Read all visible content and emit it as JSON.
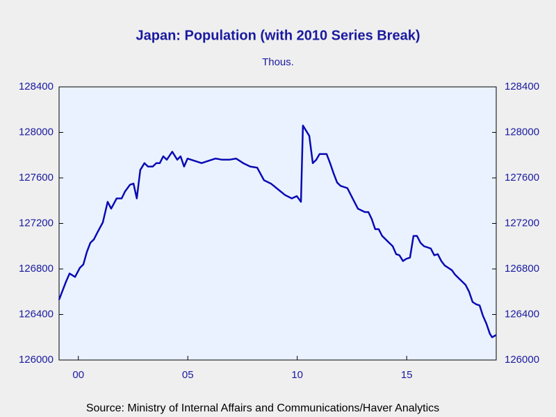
{
  "chart_data": {
    "type": "line",
    "title": "Japan: Population (with 2010 Series Break)",
    "subtitle": "Thous.",
    "source": "Source:  Ministry of Internal Affairs and Communications/Haver Analytics",
    "x": [
      1999.62,
      1999.94,
      2000.1,
      2000.35,
      2000.57,
      2000.73,
      2000.89,
      2001.05,
      2001.21,
      2001.37,
      2001.62,
      2001.84,
      2002.0,
      2002.25,
      2002.48,
      2002.63,
      2002.86,
      2003.02,
      2003.17,
      2003.33,
      2003.52,
      2003.68,
      2003.9,
      2004.06,
      2004.22,
      2004.38,
      2004.54,
      2004.79,
      2005.02,
      2005.17,
      2005.33,
      2005.49,
      2005.81,
      2006.13,
      2006.44,
      2006.76,
      2007.08,
      2007.4,
      2007.71,
      2008.03,
      2008.35,
      2008.67,
      2008.98,
      2009.3,
      2009.62,
      2009.94,
      2010.25,
      2010.48,
      2010.67,
      2010.76,
      2011.05,
      2011.21,
      2011.37,
      2011.52,
      2011.84,
      2012.0,
      2012.16,
      2012.32,
      2012.48,
      2012.79,
      2012.95,
      2013.11,
      2013.27,
      2013.59,
      2013.75,
      2013.9,
      2014.06,
      2014.22,
      2014.38,
      2014.54,
      2014.7,
      2014.86,
      2015.02,
      2015.17,
      2015.33,
      2015.49,
      2015.65,
      2015.81,
      2015.97,
      2016.13,
      2016.29,
      2016.6,
      2016.76,
      2016.92,
      2017.08,
      2017.24,
      2017.56,
      2017.71,
      2017.87,
      2018.03,
      2018.19,
      2018.35,
      2018.51,
      2018.67,
      2018.83,
      2018.98,
      2019.14,
      2019.3,
      2019.4,
      2019.59
    ],
    "series": [
      {
        "name": "Population",
        "color": "#0a0ab4",
        "values": [
          126530,
          126690,
          126760,
          126730,
          126810,
          126840,
          126950,
          127030,
          127060,
          127120,
          127210,
          127390,
          127330,
          127420,
          127420,
          127480,
          127540,
          127550,
          127420,
          127670,
          127730,
          127700,
          127700,
          127730,
          127730,
          127790,
          127760,
          127830,
          127760,
          127790,
          127700,
          127770,
          127750,
          127730,
          127750,
          127770,
          127760,
          127760,
          127770,
          127730,
          127700,
          127690,
          127580,
          127550,
          127500,
          127450,
          127420,
          127440,
          127390,
          128060,
          127970,
          127730,
          127760,
          127810,
          127810,
          127730,
          127640,
          127560,
          127530,
          127510,
          127450,
          127390,
          127330,
          127300,
          127300,
          127240,
          127150,
          127150,
          127090,
          127060,
          127030,
          127000,
          126930,
          126920,
          126870,
          126890,
          126900,
          127090,
          127090,
          127030,
          127000,
          126980,
          126920,
          126930,
          126870,
          126830,
          126790,
          126750,
          126720,
          126690,
          126660,
          126600,
          126510,
          126490,
          126480,
          126390,
          126320,
          126230,
          126200,
          126220
        ]
      }
    ],
    "xlim": [
      1999.62,
      2019.59
    ],
    "xticks": [
      {
        "value": 2000.5,
        "label": "00"
      },
      {
        "value": 2005.5,
        "label": "05"
      },
      {
        "value": 2010.5,
        "label": "10"
      },
      {
        "value": 2015.5,
        "label": "15"
      }
    ],
    "ylim": [
      126000,
      128400
    ],
    "yticks": [
      126000,
      126400,
      126800,
      127200,
      127600,
      128000,
      128400
    ],
    "right_axis": true
  }
}
